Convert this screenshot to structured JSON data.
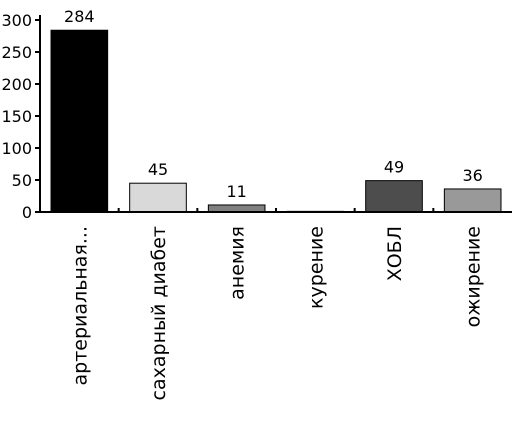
{
  "chart_data": {
    "type": "bar",
    "categories": [
      "артериальная...",
      "сахарный диабет",
      "анемия",
      "курение",
      "ХОБЛ",
      "ожирение"
    ],
    "values": [
      284,
      45,
      11,
      1,
      49,
      36
    ],
    "value_labels": [
      "284",
      "45",
      "11",
      null,
      "49",
      "36"
    ],
    "colors": [
      "#000000",
      "#d9d9d9",
      "#808080",
      "#000000",
      "#4d4d4d",
      "#999999"
    ],
    "ylim": [
      0,
      300
    ],
    "yticks": [
      0,
      50,
      100,
      150,
      200,
      250,
      300
    ]
  }
}
